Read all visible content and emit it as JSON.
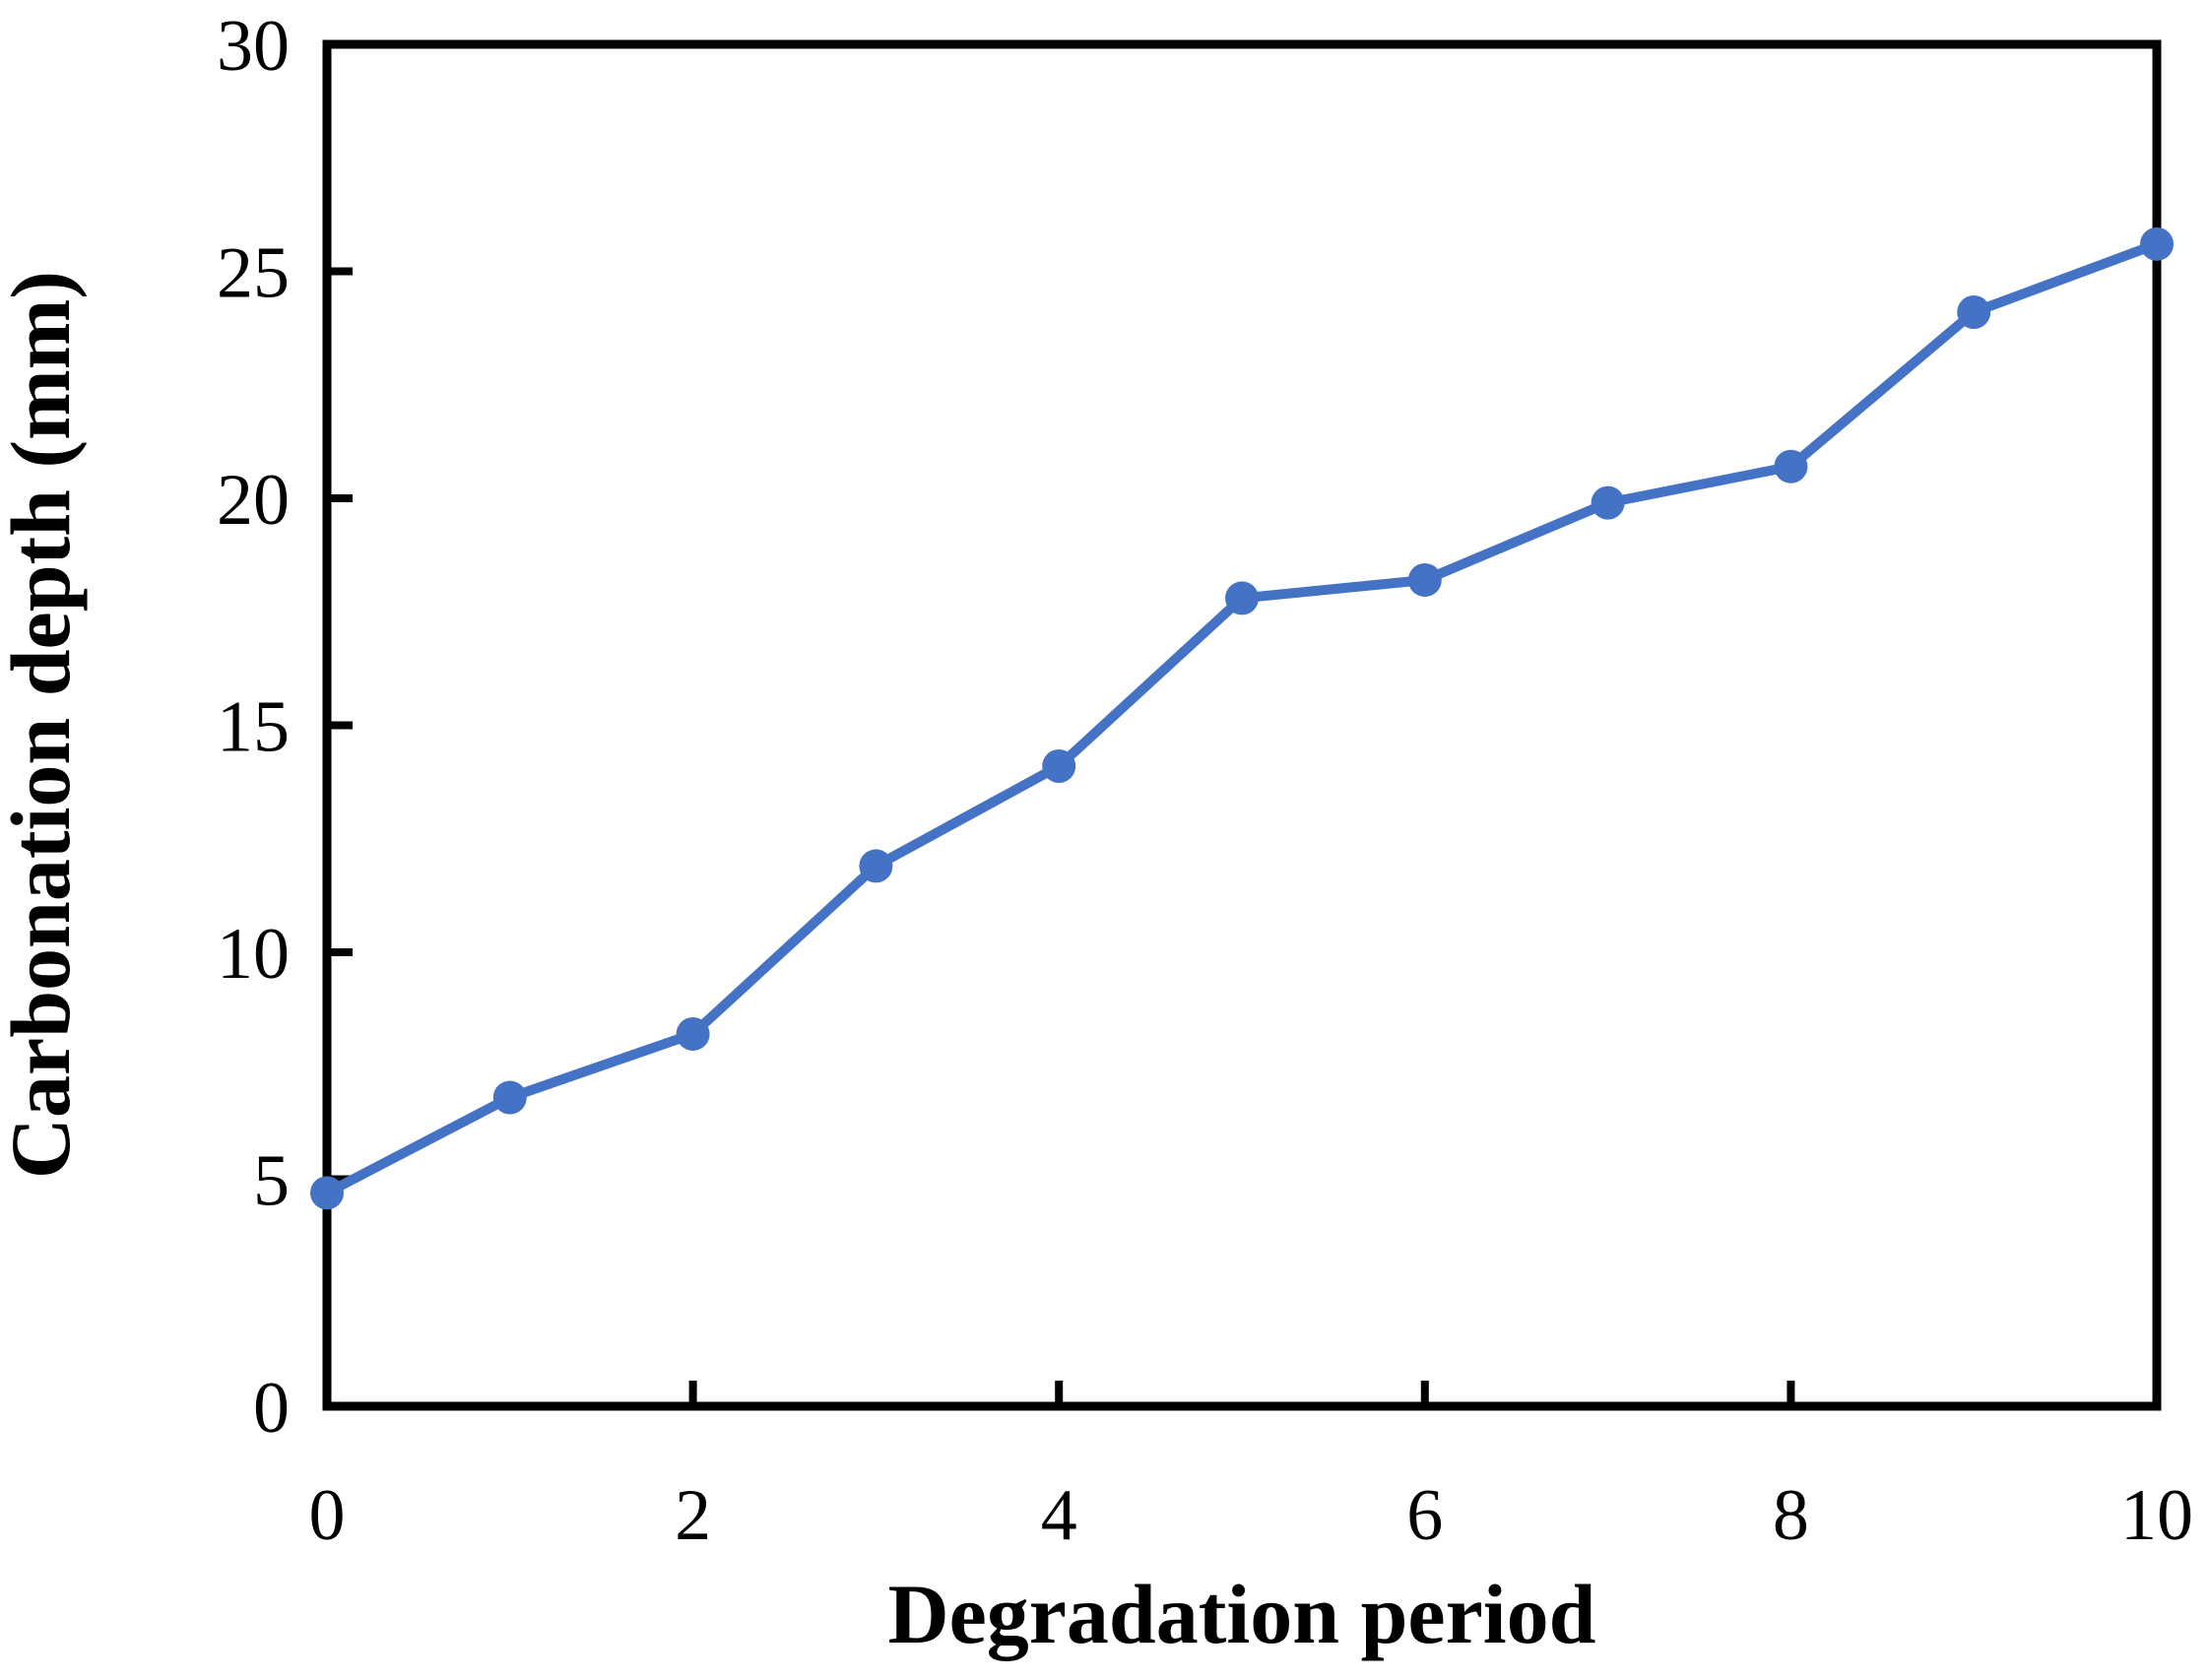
{
  "chart_data": {
    "type": "line",
    "title": "",
    "xlabel": "Degradation period",
    "ylabel": "Carbonation depth (mm)",
    "x": [
      0,
      1,
      2,
      3,
      4,
      5,
      6,
      7,
      8,
      9,
      10
    ],
    "series": [
      {
        "name": "Carbonation depth",
        "values": [
          4.7,
          6.8,
          8.2,
          11.9,
          14.1,
          17.8,
          18.2,
          19.9,
          20.7,
          24.1,
          25.6
        ]
      }
    ],
    "xlim": [
      0,
      10
    ],
    "ylim": [
      0,
      30
    ],
    "x_ticks": [
      0,
      2,
      4,
      6,
      8,
      10
    ],
    "y_ticks": [
      0,
      5,
      10,
      15,
      20,
      25,
      30
    ],
    "grid": false,
    "legend": false,
    "line_color": "#4472C4",
    "marker": "circle",
    "axis_color": "#000000",
    "plot_background": "#ffffff"
  }
}
